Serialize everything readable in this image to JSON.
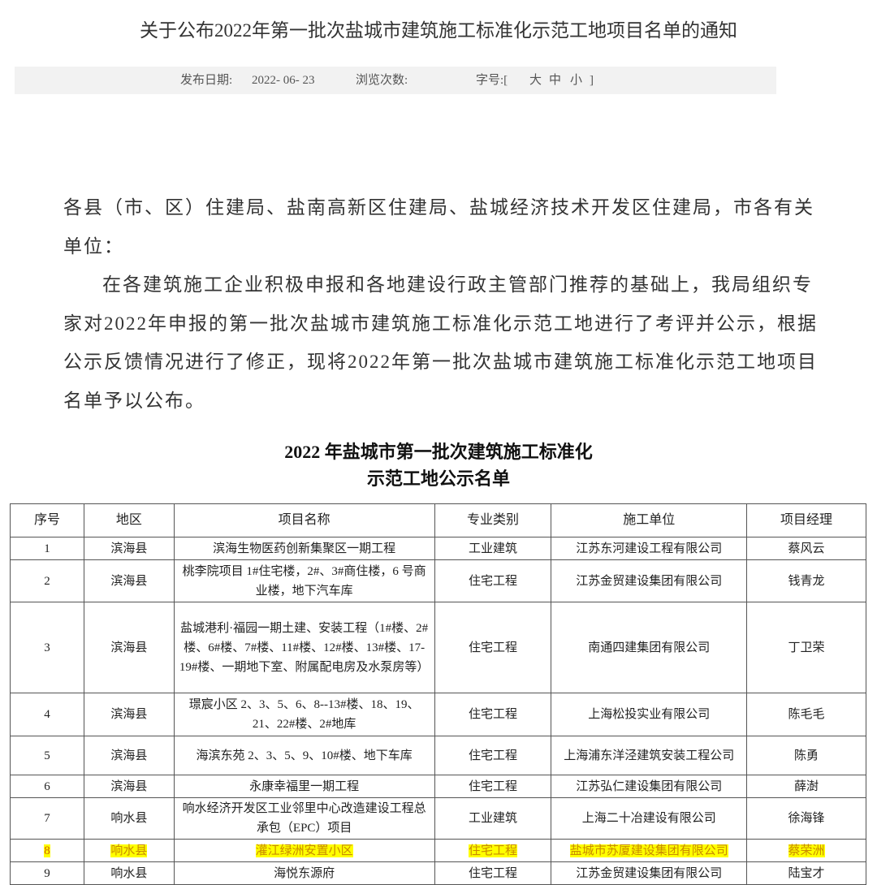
{
  "notice": {
    "title": "关于公布2022年第一批次盐城市建筑施工标准化示范工地项目名单的通知",
    "publish_date_label": "发布日期:",
    "publish_date": "2022- 06- 23",
    "views_label": "浏览次数:",
    "font_size_label": "字号:[",
    "font_large": "大",
    "font_medium": "中",
    "font_small": "小",
    "font_close": "]"
  },
  "body": {
    "salutation": "各县（市、区）住建局、盐南高新区住建局、盐城经济技术开发区住建局，市各有关单位：",
    "paragraph": "在各建筑施工企业积极申报和各地建设行政主管部门推荐的基础上，我局组织专家对2022年申报的第一批次盐城市建筑施工标准化示范工地进行了考评并公示，根据公示反馈情况进行了修正，现将2022年第一批次盐城市建筑施工标准化示范工地项目名单予以公布。"
  },
  "table": {
    "title_line1": "2022 年盐城市第一批次建筑施工标准化",
    "title_line2": "示范工地公示名单",
    "headers": [
      "序号",
      "地区",
      "项目名称",
      "专业类别",
      "施工单位",
      "项目经理"
    ],
    "rows": [
      [
        "1",
        "滨海县",
        "滨海生物医药创新集聚区一期工程",
        "工业建筑",
        "江苏东河建设工程有限公司",
        "蔡风云"
      ],
      [
        "2",
        "滨海县",
        "桃李院项目 1#住宅楼，2#、3#商住楼，6 号商业楼，地下汽车库",
        "住宅工程",
        "江苏金贸建设集团有限公司",
        "钱青龙"
      ],
      [
        "3",
        "滨海县",
        "盐城港利·福园一期土建、安装工程（1#楼、2#楼、6#楼、7#楼、11#楼、12#楼、13#楼、17-19#楼、一期地下室、附属配电房及水泵房等）",
        "住宅工程",
        "南通四建集团有限公司",
        "丁卫荣"
      ],
      [
        "4",
        "滨海县",
        "璟宸小区 2、3、5、6、8--13#楼、18、19、21、22#楼、2#地库",
        "住宅工程",
        "上海松投实业有限公司",
        "陈毛毛"
      ],
      [
        "5",
        "滨海县",
        "海滨东苑 2、3、5、9、10#楼、地下车库",
        "住宅工程",
        "上海浦东洋泾建筑安装工程公司",
        "陈勇"
      ],
      [
        "6",
        "滨海县",
        "永康幸福里一期工程",
        "住宅工程",
        "江苏弘仁建设集团有限公司",
        "薛澍"
      ],
      [
        "7",
        "响水县",
        "响水经济开发区工业邻里中心改造建设工程总承包（EPC）项目",
        "工业建筑",
        "上海二十冶建设有限公司",
        "徐海锋"
      ],
      [
        "8",
        "响水县",
        "灌江绿洲安置小区",
        "住宅工程",
        "盐城市苏厦建设集团有限公司",
        "蔡荣洲"
      ],
      [
        "9",
        "响水县",
        "海悦东源府",
        "住宅工程",
        "江苏金贸建设集团有限公司",
        "陆宝才"
      ]
    ],
    "highlight_row": 8,
    "highlight_color": "#ffff00"
  }
}
